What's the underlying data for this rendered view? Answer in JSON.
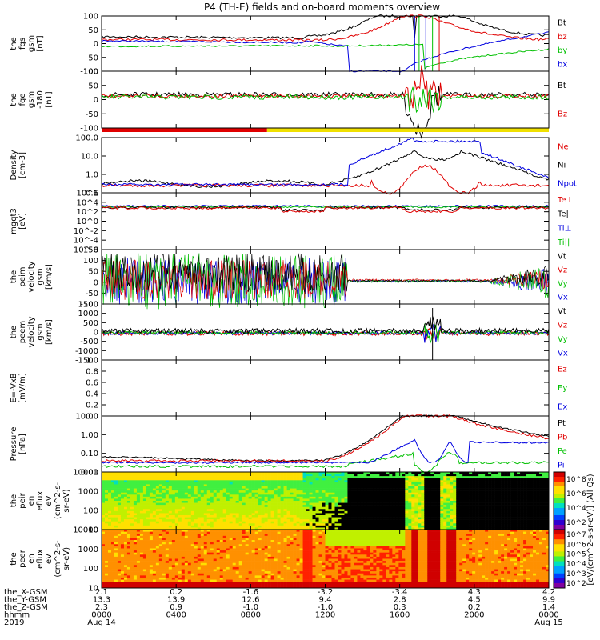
{
  "title": "P4 (TH-E) fields and on-board moments overview",
  "colors": {
    "black": "#000000",
    "red": "#e00000",
    "green": "#00c000",
    "blue": "#0000e0",
    "yellow": "#f0e000"
  },
  "chart_data": [
    {
      "type": "line",
      "ylabel": [
        "the",
        "fgs",
        "gsm",
        "[nT]"
      ],
      "ylim": [
        -100,
        100
      ],
      "yticks": [
        "100",
        "50",
        "0",
        "-50",
        "-100"
      ],
      "legend": [
        {
          "name": "Bt",
          "color": "black"
        },
        {
          "name": "bz",
          "color": "red"
        },
        {
          "name": "by",
          "color": "green"
        },
        {
          "name": "bx",
          "color": "blue"
        }
      ]
    },
    {
      "type": "line",
      "ylabel": [
        "the",
        "fge",
        "gsm",
        "-180",
        "[nT]"
      ],
      "ylim": [
        -130,
        100
      ],
      "yticks": [
        "100",
        "50",
        "0",
        "-50",
        "-100"
      ],
      "legend": [
        {
          "name": "Bt",
          "color": "black"
        },
        {
          "name": "Bz",
          "color": "red"
        }
      ],
      "mode_bar": [
        {
          "from": 0.0,
          "to": 0.37,
          "color": "red"
        },
        {
          "from": 0.37,
          "to": 1.0,
          "color": "yellow"
        }
      ]
    },
    {
      "type": "line",
      "scale": "log",
      "ylabel": [
        "Density",
        "[cm-3]"
      ],
      "yticks": [
        "100.0",
        "10.0",
        "1.0",
        "0.1"
      ],
      "legend": [
        {
          "name": "Ne",
          "color": "red"
        },
        {
          "name": "Ni",
          "color": "black"
        },
        {
          "name": "Npot",
          "color": "blue"
        }
      ]
    },
    {
      "type": "line",
      "scale": "log",
      "ylabel": [
        "mgqt3",
        "[eV]"
      ],
      "yticks": [
        "10^6",
        "10^4",
        "10^2",
        "10^0",
        "10^-2",
        "10^-4",
        "10^-6"
      ],
      "legend": [
        {
          "name": "Te⊥",
          "color": "red"
        },
        {
          "name": "Te||",
          "color": "black"
        },
        {
          "name": "Ti⊥",
          "color": "blue"
        },
        {
          "name": "Ti||",
          "color": "green"
        }
      ]
    },
    {
      "type": "line",
      "ylabel": [
        "the",
        "peim",
        "velocity",
        "gsm",
        "[km/s]"
      ],
      "ylim": [
        -100,
        150
      ],
      "yticks": [
        "150",
        "100",
        "50",
        "0",
        "-50",
        "-100"
      ],
      "legend": [
        {
          "name": "Vt",
          "color": "black"
        },
        {
          "name": "Vz",
          "color": "red"
        },
        {
          "name": "Vy",
          "color": "green"
        },
        {
          "name": "Vx",
          "color": "blue"
        }
      ]
    },
    {
      "type": "line",
      "ylabel": [
        "the",
        "peem",
        "velocity",
        "gsm",
        "[km/s]"
      ],
      "ylim": [
        -1500,
        1500
      ],
      "yticks": [
        "1500",
        "1000",
        "500",
        "0",
        "-500",
        "-1000",
        "-1500"
      ],
      "legend": [
        {
          "name": "Vt",
          "color": "black"
        },
        {
          "name": "Vz",
          "color": "red"
        },
        {
          "name": "Vy",
          "color": "green"
        },
        {
          "name": "Vx",
          "color": "blue"
        }
      ]
    },
    {
      "type": "line",
      "ylabel": [
        "E=-VxB",
        "[mV/m]"
      ],
      "ylim": [
        0,
        1
      ],
      "yticks": [
        "1.0",
        "0.8",
        "0.6",
        "0.4",
        "0.2",
        "0.0"
      ],
      "legend": [
        {
          "name": "Ez",
          "color": "red"
        },
        {
          "name": "Ey",
          "color": "green"
        },
        {
          "name": "Ex",
          "color": "blue"
        }
      ]
    },
    {
      "type": "line",
      "scale": "log",
      "ylabel": [
        "Pressure",
        "[nPa]"
      ],
      "yticks": [
        "10.00",
        "1.00",
        "0.10",
        "0.01"
      ],
      "legend": [
        {
          "name": "Pt",
          "color": "black"
        },
        {
          "name": "Pb",
          "color": "red"
        },
        {
          "name": "Pe",
          "color": "green"
        },
        {
          "name": "Pi",
          "color": "blue"
        }
      ]
    },
    {
      "type": "heatmap",
      "ylabel": [
        "the",
        "peir",
        "en",
        "eflux",
        "eV",
        "(cm^2-s-",
        "sr-eV)"
      ],
      "yticks": [
        "10000",
        "1000",
        "100",
        "10"
      ],
      "colorbar": {
        "ticks": [
          "10^8",
          "10^6",
          "10^4",
          "10^2"
        ],
        "label": "[eV/(cm^2-s-sr-eV)] (All Qs)"
      }
    },
    {
      "type": "heatmap",
      "ylabel": [
        "the",
        "peer",
        "en",
        "eflux",
        "eV",
        "(cm^2-s-",
        "sr-eV)"
      ],
      "yticks": [
        "10000",
        "1000",
        "100",
        "10"
      ],
      "colorbar": {
        "ticks": [
          "10^7",
          "10^6",
          "10^5",
          "10^4",
          "10^3",
          "10^2"
        ],
        "label": "[eV/(cm^2-s-sr-eV)] (All Qs)"
      }
    }
  ],
  "xaxis": {
    "row_labels": [
      "the_X-GSM",
      "the_Y-GSM",
      "the_Z-GSM",
      "hhmm",
      "2019"
    ],
    "columns": [
      {
        "vals": [
          "2.1",
          "13.3",
          "2.3",
          "0000",
          "Aug 14"
        ]
      },
      {
        "vals": [
          "0.2",
          "13.9",
          "0.9",
          "0400",
          ""
        ]
      },
      {
        "vals": [
          "-1.6",
          "12.6",
          "-1.0",
          "0800",
          ""
        ]
      },
      {
        "vals": [
          "-3.2",
          "9.4",
          "-1.0",
          "1200",
          ""
        ]
      },
      {
        "vals": [
          "-3.4",
          "2.8",
          "0.3",
          "1600",
          ""
        ]
      },
      {
        "vals": [
          "4.3",
          "4.5",
          "0.2",
          "2000",
          ""
        ]
      },
      {
        "vals": [
          "4.2",
          "9.9",
          "1.4",
          "0000",
          "Aug 15"
        ]
      }
    ]
  }
}
